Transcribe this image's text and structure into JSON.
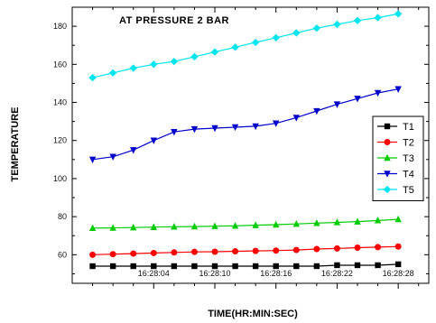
{
  "chart_data": {
    "type": "line",
    "title": "AT PRESSURE 2 BAR",
    "xlabel": "TIME(HR:MIN:SEC)",
    "ylabel": "TEMPERATURE",
    "ylim": [
      45,
      190
    ],
    "y_ticks": [
      60,
      80,
      100,
      120,
      140,
      160,
      180
    ],
    "x_tick_labels": [
      "16:28:04",
      "16:28:10",
      "16:28:16",
      "16:28:22",
      "16:28:28"
    ],
    "x_tick_positions": [
      3,
      6,
      9,
      12,
      15
    ],
    "xlim": [
      -1,
      16.5
    ],
    "legend_position": "center-right",
    "grid": false,
    "x": [
      0,
      1,
      2,
      3,
      4,
      5,
      6,
      7,
      8,
      9,
      10,
      11,
      12,
      13,
      14,
      15
    ],
    "series": [
      {
        "name": "T1",
        "color": "#000000",
        "marker": "square",
        "values": [
          54,
          54,
          54,
          54,
          54,
          54,
          54,
          54,
          54,
          54,
          54,
          54,
          54.5,
          54.5,
          54.5,
          55
        ]
      },
      {
        "name": "T2",
        "color": "#ff0000",
        "marker": "circle",
        "values": [
          60,
          60.3,
          60.6,
          60.9,
          61.2,
          61.5,
          61.6,
          61.8,
          62,
          62.2,
          62.5,
          63,
          63.3,
          63.7,
          64,
          64.3
        ]
      },
      {
        "name": "T3",
        "color": "#00cc00",
        "marker": "triangle-up",
        "values": [
          74,
          74.1,
          74.3,
          74.5,
          74.7,
          74.8,
          75,
          75.2,
          75.5,
          75.8,
          76.2,
          76.6,
          77,
          77.4,
          78,
          78.6
        ]
      },
      {
        "name": "T4",
        "color": "#0000cc",
        "marker": "triangle-down",
        "values": [
          110,
          111.5,
          115,
          120,
          124.5,
          126,
          126.5,
          127,
          127.5,
          129,
          132,
          135.5,
          139,
          142,
          145,
          147
        ]
      },
      {
        "name": "T5",
        "color": "#00e5ee",
        "marker": "diamond",
        "values": [
          153,
          155.5,
          158,
          160,
          161.5,
          164,
          166.5,
          169,
          171.5,
          174,
          176.5,
          179,
          181,
          183,
          184.5,
          186.5
        ]
      }
    ]
  }
}
